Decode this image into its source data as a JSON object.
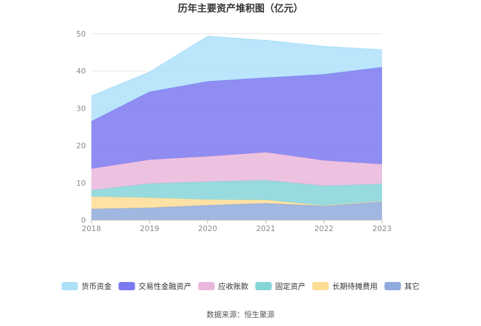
{
  "chart_data": {
    "type": "area",
    "stacked": true,
    "title": "历年主要资产堆积图（亿元）",
    "x": [
      "2018",
      "2019",
      "2020",
      "2021",
      "2022",
      "2023"
    ],
    "ylim": [
      0,
      50
    ],
    "yticks": [
      0,
      10,
      20,
      30,
      40,
      50
    ],
    "grid": "horizontal",
    "legend_position": "bottom",
    "series": [
      {
        "name": "其它",
        "color": "#8faadc",
        "values": [
          3.0,
          3.3,
          4.0,
          4.5,
          3.8,
          5.0
        ]
      },
      {
        "name": "长期待摊费用",
        "color": "#fedd95",
        "values": [
          3.3,
          2.7,
          1.5,
          0.9,
          0.1,
          0.1
        ]
      },
      {
        "name": "固定资产",
        "color": "#86d5d8",
        "values": [
          1.7,
          3.8,
          4.8,
          5.3,
          5.3,
          4.6
        ]
      },
      {
        "name": "应收账款",
        "color": "#eab7dc",
        "values": [
          5.8,
          6.4,
          6.8,
          7.5,
          6.8,
          5.3
        ]
      },
      {
        "name": "交易性金融资产",
        "color": "#7b79f0",
        "values": [
          12.7,
          18.2,
          20.1,
          20.0,
          23.1,
          26.0
        ]
      },
      {
        "name": "货币资金",
        "color": "#aee0fa",
        "values": [
          6.8,
          5.3,
          12.1,
          10.0,
          7.5,
          4.7
        ]
      }
    ],
    "legend_order": [
      "货币资金",
      "交易性金融资产",
      "应收账款",
      "固定资产",
      "长期待摊费用",
      "其它"
    ]
  },
  "source": "数据来源：恒生聚源"
}
